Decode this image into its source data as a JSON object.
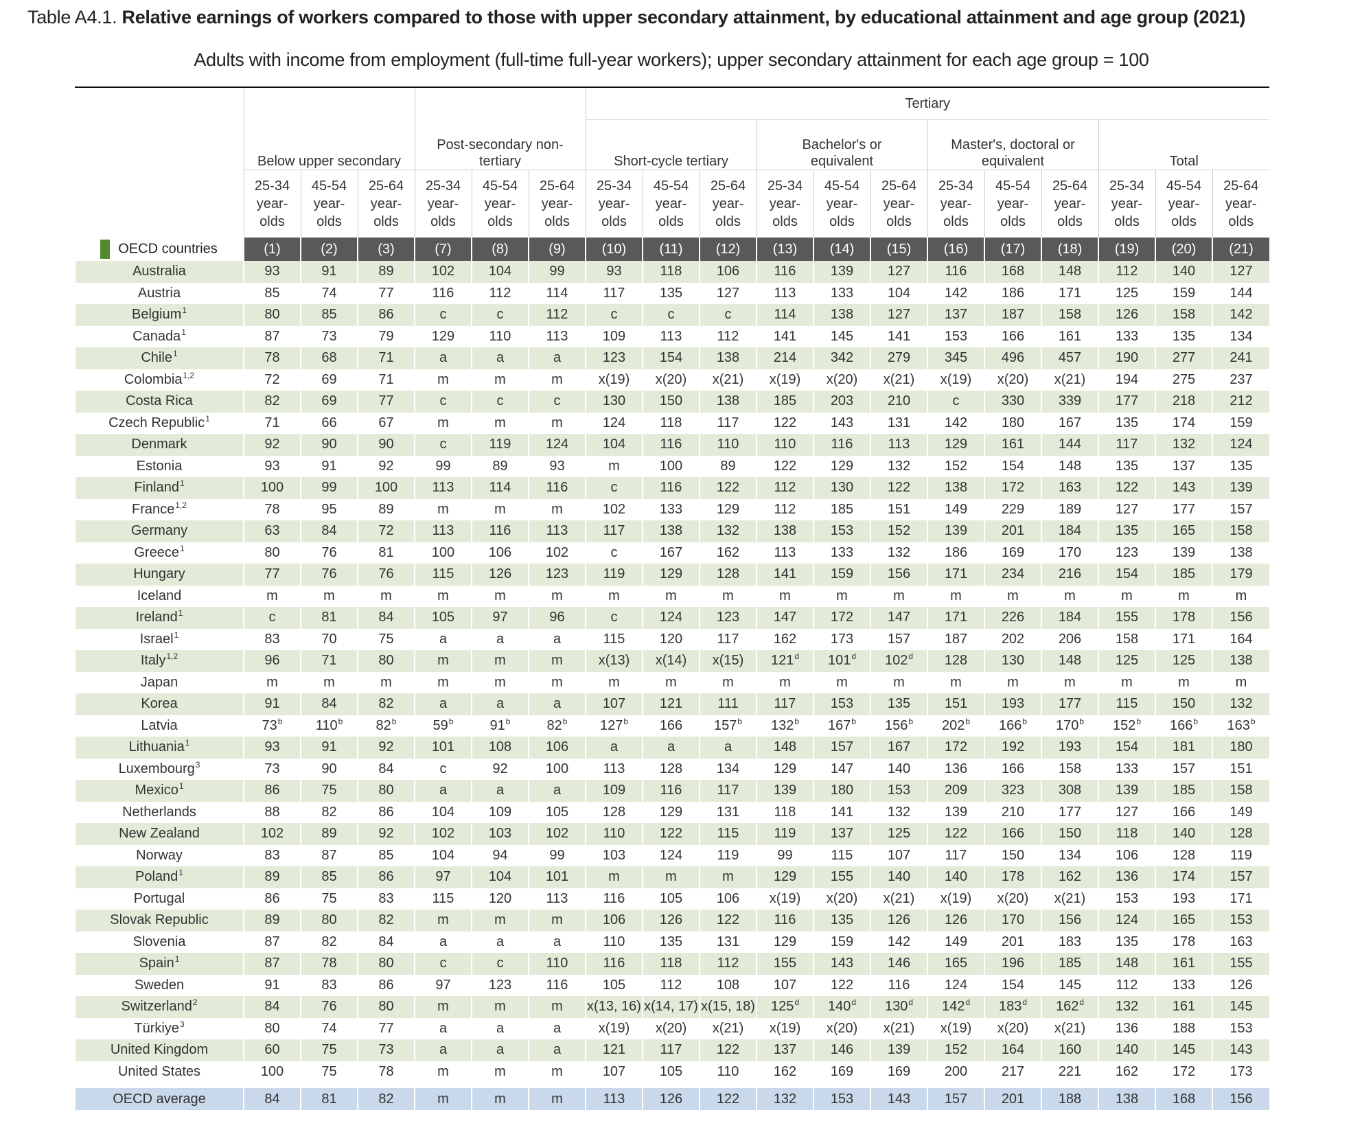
{
  "header": {
    "label": "Table A4.1.",
    "title": "Relative earnings of workers compared to those with upper secondary attainment, by educational attainment and age group (2021)",
    "subtitle": "Adults with income from employment (full-time full-year workers); upper secondary attainment for each age group = 100"
  },
  "table": {
    "column_groups": [
      {
        "name": "Below upper secondary",
        "columns": [
          {
            "age": "25-34 year-olds",
            "number": "(1)"
          },
          {
            "age": "45-54 year-olds",
            "number": "(2)"
          },
          {
            "age": "25-64 year-olds",
            "number": "(3)"
          }
        ]
      },
      {
        "name": "Post-secondary non-tertiary",
        "columns": [
          {
            "age": "25-34 year-olds",
            "number": "(7)"
          },
          {
            "age": "45-54 year-olds",
            "number": "(8)"
          },
          {
            "age": "25-64 year-olds",
            "number": "(9)"
          }
        ]
      },
      {
        "name": "Tertiary",
        "subgroups": [
          {
            "name": "Short-cycle tertiary",
            "columns": [
              {
                "age": "25-34 year-olds",
                "number": "(10)"
              },
              {
                "age": "45-54 year-olds",
                "number": "(11)"
              },
              {
                "age": "25-64 year-olds",
                "number": "(12)"
              }
            ]
          },
          {
            "name": "Bachelor's or equivalent",
            "columns": [
              {
                "age": "25-34 year-olds",
                "number": "(13)"
              },
              {
                "age": "45-54 year-olds",
                "number": "(14)"
              },
              {
                "age": "25-64 year-olds",
                "number": "(15)"
              }
            ]
          },
          {
            "name": "Master's, doctoral or equivalent",
            "columns": [
              {
                "age": "25-34 year-olds",
                "number": "(16)"
              },
              {
                "age": "45-54 year-olds",
                "number": "(17)"
              },
              {
                "age": "25-64 year-olds",
                "number": "(18)"
              }
            ]
          },
          {
            "name": "Total",
            "columns": [
              {
                "age": "25-34 year-olds",
                "number": "(19)"
              },
              {
                "age": "45-54 year-olds",
                "number": "(20)"
              },
              {
                "age": "25-64 year-olds",
                "number": "(21)"
              }
            ]
          }
        ]
      }
    ],
    "section": "OECD countries",
    "rows": [
      {
        "country": "Australia",
        "cells": [
          "93",
          "91",
          "89",
          "102",
          "104",
          "99",
          "93",
          "118",
          "106",
          "116",
          "139",
          "127",
          "116",
          "168",
          "148",
          "112",
          "140",
          "127"
        ]
      },
      {
        "country": "Austria",
        "cells": [
          "85",
          "74",
          "77",
          "116",
          "112",
          "114",
          "117",
          "135",
          "127",
          "113",
          "133",
          "104",
          "142",
          "186",
          "171",
          "125",
          "159",
          "144"
        ]
      },
      {
        "country": "Belgium",
        "note": "1",
        "cells": [
          "80",
          "85",
          "86",
          "c",
          "c",
          "112",
          "c",
          "c",
          "c",
          "114",
          "138",
          "127",
          "137",
          "187",
          "158",
          "126",
          "158",
          "142"
        ]
      },
      {
        "country": "Canada",
        "note": "1",
        "cells": [
          "87",
          "73",
          "79",
          "129",
          "110",
          "113",
          "109",
          "113",
          "112",
          "141",
          "145",
          "141",
          "153",
          "166",
          "161",
          "133",
          "135",
          "134"
        ]
      },
      {
        "country": "Chile",
        "note": "1",
        "cells": [
          "78",
          "68",
          "71",
          "a",
          "a",
          "a",
          "123",
          "154",
          "138",
          "214",
          "342",
          "279",
          "345",
          "496",
          "457",
          "190",
          "277",
          "241"
        ]
      },
      {
        "country": "Colombia",
        "note": "1,2",
        "cells": [
          "72",
          "69",
          "71",
          "m",
          "m",
          "m",
          "x(19)",
          "x(20)",
          "x(21)",
          "x(19)",
          "x(20)",
          "x(21)",
          "x(19)",
          "x(20)",
          "x(21)",
          "194",
          "275",
          "237"
        ]
      },
      {
        "country": "Costa Rica",
        "cells": [
          "82",
          "69",
          "77",
          "c",
          "c",
          "c",
          "130",
          "150",
          "138",
          "185",
          "203",
          "210",
          "c",
          "330",
          "339",
          "177",
          "218",
          "212"
        ]
      },
      {
        "country": "Czech Republic",
        "note": "1",
        "cells": [
          "71",
          "66",
          "67",
          "m",
          "m",
          "m",
          "124",
          "118",
          "117",
          "122",
          "143",
          "131",
          "142",
          "180",
          "167",
          "135",
          "174",
          "159"
        ]
      },
      {
        "country": "Denmark",
        "cells": [
          "92",
          "90",
          "90",
          "c",
          "119",
          "124",
          "104",
          "116",
          "110",
          "110",
          "116",
          "113",
          "129",
          "161",
          "144",
          "117",
          "132",
          "124"
        ]
      },
      {
        "country": "Estonia",
        "cells": [
          "93",
          "91",
          "92",
          "99",
          "89",
          "93",
          "m",
          "100",
          "89",
          "122",
          "129",
          "132",
          "152",
          "154",
          "148",
          "135",
          "137",
          "135"
        ]
      },
      {
        "country": "Finland",
        "note": "1",
        "cells": [
          "100",
          "99",
          "100",
          "113",
          "114",
          "116",
          "c",
          "116",
          "122",
          "112",
          "130",
          "122",
          "138",
          "172",
          "163",
          "122",
          "143",
          "139"
        ]
      },
      {
        "country": "France",
        "note": "1,2",
        "cells": [
          "78",
          "95",
          "89",
          "m",
          "m",
          "m",
          "102",
          "133",
          "129",
          "112",
          "185",
          "151",
          "149",
          "229",
          "189",
          "127",
          "177",
          "157"
        ]
      },
      {
        "country": "Germany",
        "cells": [
          "63",
          "84",
          "72",
          "113",
          "116",
          "113",
          "117",
          "138",
          "132",
          "138",
          "153",
          "152",
          "139",
          "201",
          "184",
          "135",
          "165",
          "158"
        ]
      },
      {
        "country": "Greece",
        "note": "1",
        "cells": [
          "80",
          "76",
          "81",
          "100",
          "106",
          "102",
          "c",
          "167",
          "162",
          "113",
          "133",
          "132",
          "186",
          "169",
          "170",
          "123",
          "139",
          "138"
        ]
      },
      {
        "country": "Hungary",
        "cells": [
          "77",
          "76",
          "76",
          "115",
          "126",
          "123",
          "119",
          "129",
          "128",
          "141",
          "159",
          "156",
          "171",
          "234",
          "216",
          "154",
          "185",
          "179"
        ]
      },
      {
        "country": "Iceland",
        "cells": [
          "m",
          "m",
          "m",
          "m",
          "m",
          "m",
          "m",
          "m",
          "m",
          "m",
          "m",
          "m",
          "m",
          "m",
          "m",
          "m",
          "m",
          "m"
        ]
      },
      {
        "country": "Ireland",
        "note": "1",
        "cells": [
          "c",
          "81",
          "84",
          "105",
          "97",
          "96",
          "c",
          "124",
          "123",
          "147",
          "172",
          "147",
          "171",
          "226",
          "184",
          "155",
          "178",
          "156"
        ]
      },
      {
        "country": "Israel",
        "note": "1",
        "cells": [
          "83",
          "70",
          "75",
          "a",
          "a",
          "a",
          "115",
          "120",
          "117",
          "162",
          "173",
          "157",
          "187",
          "202",
          "206",
          "158",
          "171",
          "164"
        ]
      },
      {
        "country": "Italy",
        "note": "1,2",
        "cells": [
          "96",
          "71",
          "80",
          "m",
          "m",
          "m",
          "x(13)",
          "x(14)",
          "x(15)",
          {
            "text": "121",
            "sup": "d"
          },
          {
            "text": "101",
            "sup": "d"
          },
          {
            "text": "102",
            "sup": "d"
          },
          "128",
          "130",
          "148",
          "125",
          "125",
          "138"
        ]
      },
      {
        "country": "Japan",
        "cells": [
          "m",
          "m",
          "m",
          "m",
          "m",
          "m",
          "m",
          "m",
          "m",
          "m",
          "m",
          "m",
          "m",
          "m",
          "m",
          "m",
          "m",
          "m"
        ]
      },
      {
        "country": "Korea",
        "cells": [
          "91",
          "84",
          "82",
          "a",
          "a",
          "a",
          "107",
          "121",
          "111",
          "117",
          "153",
          "135",
          "151",
          "193",
          "177",
          "115",
          "150",
          "132"
        ]
      },
      {
        "country": "Latvia",
        "cells": [
          {
            "text": "73",
            "sup": "b"
          },
          {
            "text": "110",
            "sup": "b"
          },
          {
            "text": "82",
            "sup": "b"
          },
          {
            "text": "59",
            "sup": "b"
          },
          {
            "text": "91",
            "sup": "b"
          },
          {
            "text": "82",
            "sup": "b"
          },
          {
            "text": "127",
            "sup": "b"
          },
          "166",
          {
            "text": "157",
            "sup": "b"
          },
          {
            "text": "132",
            "sup": "b"
          },
          {
            "text": "167",
            "sup": "b"
          },
          {
            "text": "156",
            "sup": "b"
          },
          {
            "text": "202",
            "sup": "b"
          },
          {
            "text": "166",
            "sup": "b"
          },
          {
            "text": "170",
            "sup": "b"
          },
          {
            "text": "152",
            "sup": "b"
          },
          {
            "text": "166",
            "sup": "b"
          },
          {
            "text": "163",
            "sup": "b"
          }
        ]
      },
      {
        "country": "Lithuania",
        "note": "1",
        "cells": [
          "93",
          "91",
          "92",
          "101",
          "108",
          "106",
          "a",
          "a",
          "a",
          "148",
          "157",
          "167",
          "172",
          "192",
          "193",
          "154",
          "181",
          "180"
        ]
      },
      {
        "country": "Luxembourg",
        "note": "3",
        "cells": [
          "73",
          "90",
          "84",
          "c",
          "92",
          "100",
          "113",
          "128",
          "134",
          "129",
          "147",
          "140",
          "136",
          "166",
          "158",
          "133",
          "157",
          "151"
        ]
      },
      {
        "country": "Mexico",
        "note": "1",
        "cells": [
          "86",
          "75",
          "80",
          "a",
          "a",
          "a",
          "109",
          "116",
          "117",
          "139",
          "180",
          "153",
          "209",
          "323",
          "308",
          "139",
          "185",
          "158"
        ]
      },
      {
        "country": "Netherlands",
        "cells": [
          "88",
          "82",
          "86",
          "104",
          "109",
          "105",
          "128",
          "129",
          "131",
          "118",
          "141",
          "132",
          "139",
          "210",
          "177",
          "127",
          "166",
          "149"
        ]
      },
      {
        "country": "New Zealand",
        "cells": [
          "102",
          "89",
          "92",
          "102",
          "103",
          "102",
          "110",
          "122",
          "115",
          "119",
          "137",
          "125",
          "122",
          "166",
          "150",
          "118",
          "140",
          "128"
        ]
      },
      {
        "country": "Norway",
        "cells": [
          "83",
          "87",
          "85",
          "104",
          "94",
          "99",
          "103",
          "124",
          "119",
          "99",
          "115",
          "107",
          "117",
          "150",
          "134",
          "106",
          "128",
          "119"
        ]
      },
      {
        "country": "Poland",
        "note": "1",
        "cells": [
          "89",
          "85",
          "86",
          "97",
          "104",
          "101",
          "m",
          "m",
          "m",
          "129",
          "155",
          "140",
          "140",
          "178",
          "162",
          "136",
          "174",
          "157"
        ]
      },
      {
        "country": "Portugal",
        "cells": [
          "86",
          "75",
          "83",
          "115",
          "120",
          "113",
          "116",
          "105",
          "106",
          "x(19)",
          "x(20)",
          "x(21)",
          "x(19)",
          "x(20)",
          "x(21)",
          "153",
          "193",
          "171"
        ]
      },
      {
        "country": "Slovak Republic",
        "cells": [
          "89",
          "80",
          "82",
          "m",
          "m",
          "m",
          "106",
          "126",
          "122",
          "116",
          "135",
          "126",
          "126",
          "170",
          "156",
          "124",
          "165",
          "153"
        ]
      },
      {
        "country": "Slovenia",
        "cells": [
          "87",
          "82",
          "84",
          "a",
          "a",
          "a",
          "110",
          "135",
          "131",
          "129",
          "159",
          "142",
          "149",
          "201",
          "183",
          "135",
          "178",
          "163"
        ]
      },
      {
        "country": "Spain",
        "note": "1",
        "cells": [
          "87",
          "78",
          "80",
          "c",
          "c",
          "110",
          "116",
          "118",
          "112",
          "155",
          "143",
          "146",
          "165",
          "196",
          "185",
          "148",
          "161",
          "155"
        ]
      },
      {
        "country": "Sweden",
        "cells": [
          "91",
          "83",
          "86",
          "97",
          "123",
          "116",
          "105",
          "112",
          "108",
          "107",
          "122",
          "116",
          "124",
          "154",
          "145",
          "112",
          "133",
          "126"
        ]
      },
      {
        "country": "Switzerland",
        "note": "2",
        "cells": [
          "84",
          "76",
          "80",
          "m",
          "m",
          "m",
          "x(13, 16)",
          "x(14, 17)",
          "x(15, 18)",
          {
            "text": "125",
            "sup": "d"
          },
          {
            "text": "140",
            "sup": "d"
          },
          {
            "text": "130",
            "sup": "d"
          },
          {
            "text": "142",
            "sup": "d"
          },
          {
            "text": "183",
            "sup": "d"
          },
          {
            "text": "162",
            "sup": "d"
          },
          "132",
          "161",
          "145"
        ]
      },
      {
        "country": "Türkiye",
        "note": "3",
        "cells": [
          "80",
          "74",
          "77",
          "a",
          "a",
          "a",
          "x(19)",
          "x(20)",
          "x(21)",
          "x(19)",
          "x(20)",
          "x(21)",
          "x(19)",
          "x(20)",
          "x(21)",
          "136",
          "188",
          "153"
        ]
      },
      {
        "country": "United Kingdom",
        "cells": [
          "60",
          "75",
          "73",
          "a",
          "a",
          "a",
          "121",
          "117",
          "122",
          "137",
          "146",
          "139",
          "152",
          "164",
          "160",
          "140",
          "145",
          "143"
        ]
      },
      {
        "country": "United States",
        "cells": [
          "100",
          "75",
          "78",
          "m",
          "m",
          "m",
          "107",
          "105",
          "110",
          "162",
          "169",
          "169",
          "200",
          "217",
          "221",
          "162",
          "172",
          "173"
        ]
      }
    ],
    "average": {
      "country": "OECD average",
      "cells": [
        "84",
        "81",
        "82",
        "m",
        "m",
        "m",
        "113",
        "126",
        "122",
        "132",
        "153",
        "143",
        "157",
        "201",
        "188",
        "138",
        "168",
        "156"
      ]
    }
  }
}
